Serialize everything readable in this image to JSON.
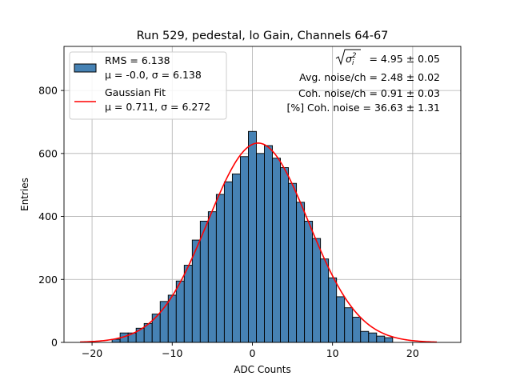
{
  "chart_data": {
    "type": "bar",
    "title": "Run 529, pedestal, lo Gain, Channels 64-67",
    "xlabel": "ADC Counts",
    "ylabel": "Entries",
    "xlim": [
      -23.5,
      26
    ],
    "ylim": [
      0,
      940
    ],
    "x_ticks": [
      -20,
      -10,
      0,
      10,
      20
    ],
    "x_tick_labels": [
      "−20",
      "−10",
      "0",
      "10",
      "20"
    ],
    "y_ticks": [
      0,
      200,
      400,
      600,
      800
    ],
    "y_tick_labels": [
      "0",
      "200",
      "400",
      "600",
      "800"
    ],
    "grid": true,
    "legend_position": "top-left",
    "histogram": {
      "bin_width": 1,
      "bin_centers": [
        -17,
        -16,
        -15,
        -14,
        -13,
        -12,
        -11,
        -10,
        -9,
        -8,
        -7,
        -6,
        -5,
        -4,
        -3,
        -2,
        -1,
        0,
        1,
        2,
        3,
        4,
        5,
        6,
        7,
        8,
        9,
        10,
        11,
        12,
        13,
        14,
        15,
        16,
        17,
        18
      ],
      "counts": [
        10,
        30,
        30,
        45,
        60,
        90,
        130,
        150,
        195,
        245,
        325,
        385,
        415,
        470,
        510,
        535,
        590,
        670,
        600,
        625,
        585,
        555,
        505,
        445,
        385,
        330,
        265,
        205,
        145,
        110,
        80,
        35,
        30,
        20,
        15,
        0
      ],
      "color": "#4682b4",
      "edge_color": "#000000"
    },
    "gaussian_fit": {
      "amplitude": 633,
      "mu": 0.711,
      "sigma": 6.272,
      "x_range": [
        -21.5,
        23
      ],
      "color": "#ff0000"
    },
    "legend": [
      {
        "kind": "patch",
        "color": "#4682b4",
        "line1": "RMS = 6.138",
        "line2": "μ = -0.0, σ = 6.138"
      },
      {
        "kind": "line",
        "color": "#ff0000",
        "line1": "Gaussian Fit",
        "line2": "μ = 0.711, σ = 6.272"
      }
    ],
    "annotations": {
      "sigma_line": " = 4.95 ± 0.05",
      "avg_noise": "Avg. noise/ch = 2.48 ± 0.02",
      "coh_noise": "Coh. noise/ch = 0.91 ± 0.03",
      "pct_coh_noise": "[%] Coh. noise = 36.63 ± 1.31"
    }
  }
}
